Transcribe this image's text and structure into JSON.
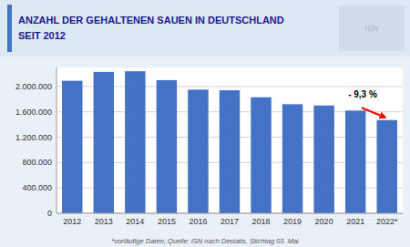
{
  "chart_data": {
    "type": "bar",
    "title": "ANZAHL DER GEHALTENEN SAUEN IN DEUTSCHLAND",
    "subtitle": "SEIT 2012",
    "categories": [
      "2012",
      "2013",
      "2014",
      "2015",
      "2016",
      "2017",
      "2018",
      "2019",
      "2020",
      "2021",
      "2022*"
    ],
    "values": [
      2090000,
      2230000,
      2240000,
      2100000,
      1950000,
      1940000,
      1830000,
      1720000,
      1700000,
      1620000,
      1470000
    ],
    "color": "#4472C4",
    "ylim": [
      0,
      2300000
    ],
    "yticks": [
      0,
      {
        "value": 400000,
        "label": "400.000"
      },
      {
        "value": 800000,
        "label": "800.000"
      },
      {
        "value": 1200000,
        "label": "1.200.000"
      },
      {
        "value": 1600000,
        "label": "1.600.000"
      },
      {
        "value": 2000000,
        "label": "2.000.000"
      }
    ],
    "grid": true,
    "annotations": [
      "- 9,3 %",
      "ISN",
      "*vorläufige Daten; Quelle: ISN nach Destatis, Stichtag 03. Mai"
    ]
  }
}
